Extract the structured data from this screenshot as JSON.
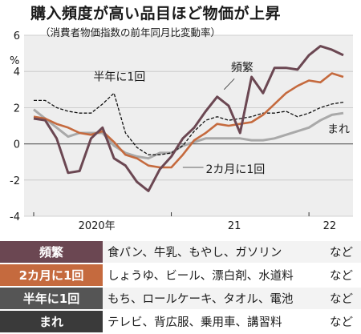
{
  "title": "購入頻度が高い品目ほど物価が上昇",
  "subtitle": "（消費者物価指数の前年同月比変動率）",
  "colors": {
    "frequent": "#6b4752",
    "bimonthly": "#c56a3e",
    "semiannual": "#111111",
    "rare": "#a9a9a9"
  },
  "chart_data": {
    "type": "line",
    "ylabel": "%",
    "ylim": [
      -4,
      6
    ],
    "yticks": [
      "6",
      "4",
      "2",
      "0",
      "-2",
      "-4"
    ],
    "xticks": [
      "2020年",
      "21",
      "22"
    ],
    "x": [
      "2020-01",
      "2020-02",
      "2020-03",
      "2020-04",
      "2020-05",
      "2020-06",
      "2020-07",
      "2020-08",
      "2020-09",
      "2020-10",
      "2020-11",
      "2020-12",
      "2021-01",
      "2021-02",
      "2021-03",
      "2021-04",
      "2021-05",
      "2021-06",
      "2021-07",
      "2021-08",
      "2021-09",
      "2021-10",
      "2021-11",
      "2021-12",
      "2022-01",
      "2022-02",
      "2022-03",
      "2022-04"
    ],
    "series": [
      {
        "name": "頻繁",
        "values": [
          1.4,
          1.3,
          0.3,
          -1.6,
          -1.5,
          0.3,
          0.9,
          -0.8,
          -1.2,
          -2.1,
          -2.6,
          -1.4,
          -0.7,
          0.3,
          0.9,
          1.8,
          2.6,
          2.1,
          0.6,
          3.7,
          2.8,
          4.2,
          4.2,
          4.1,
          4.9,
          5.4,
          5.2,
          4.9
        ]
      },
      {
        "name": "2カ月に1回",
        "values": [
          1.5,
          1.4,
          1.1,
          0.9,
          0.6,
          0.5,
          0.7,
          0.1,
          -0.6,
          -0.8,
          -1.2,
          -1.3,
          -1.3,
          -0.6,
          0.2,
          0.6,
          1.1,
          1.0,
          1.1,
          1.2,
          1.6,
          2.2,
          2.8,
          3.2,
          3.5,
          3.4,
          3.9,
          3.7
        ]
      },
      {
        "name": "半年に1回",
        "values": [
          2.4,
          2.4,
          2.0,
          1.8,
          1.7,
          1.7,
          2.2,
          2.8,
          0.6,
          -0.2,
          -0.6,
          -0.6,
          -0.5,
          -0.1,
          0.7,
          1.3,
          1.5,
          1.3,
          1.4,
          1.5,
          1.7,
          1.7,
          1.8,
          1.5,
          1.7,
          2.0,
          2.2,
          2.3
        ]
      },
      {
        "name": "まれ",
        "values": [
          1.9,
          1.4,
          0.9,
          0.4,
          0.6,
          0.6,
          0.6,
          -0.1,
          -0.5,
          -0.7,
          -0.8,
          -0.5,
          -0.5,
          -0.1,
          0.1,
          0.3,
          0.3,
          0.3,
          0.3,
          0.2,
          0.2,
          0.3,
          0.5,
          0.7,
          0.9,
          1.3,
          1.6,
          1.7
        ]
      }
    ],
    "labels": [
      "頻繁",
      "半年に1回",
      "2カ月に1回",
      "まれ"
    ]
  },
  "legend_rows": [
    {
      "category": "頻繁",
      "items": "食パン、牛乳、もやし、ガソリン",
      "suffix": "など"
    },
    {
      "category": "2カ月に1回",
      "items": "しょうゆ、ビール、漂白剤、水道料",
      "suffix": "など"
    },
    {
      "category": "半年に1回",
      "items": "もち、ロールケーキ、タオル、電池",
      "suffix": "など"
    },
    {
      "category": "まれ",
      "items": "テレビ、背広服、乗用車、講習料",
      "suffix": "など"
    }
  ]
}
